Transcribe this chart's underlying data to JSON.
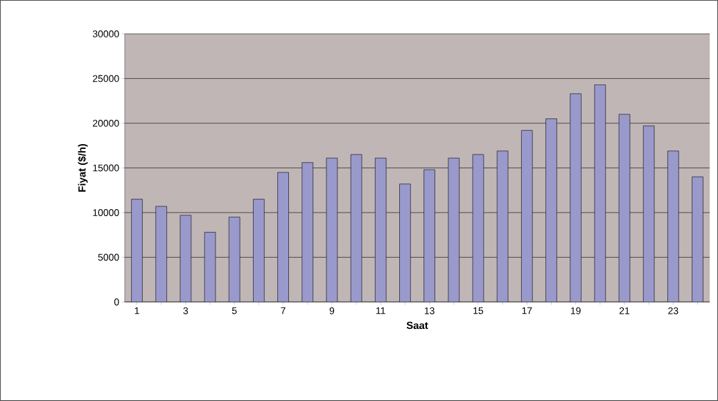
{
  "chart_data": {
    "type": "bar",
    "xlabel": "Saat",
    "ylabel": "Fiyat ($/h)",
    "categories": [
      "1",
      null,
      "3",
      null,
      "5",
      null,
      "7",
      null,
      "9",
      null,
      "11",
      null,
      "13",
      null,
      "15",
      null,
      "17",
      null,
      "19",
      null,
      "21",
      null,
      "23",
      null
    ],
    "values": [
      11500,
      10700,
      9700,
      7800,
      9500,
      11500,
      14500,
      15600,
      16100,
      16500,
      16100,
      13200,
      14800,
      16100,
      16500,
      16900,
      19200,
      20500,
      23300,
      24300,
      21000,
      19700,
      16900,
      14000
    ],
    "color": "#9999cc",
    "ylim": [
      0,
      30000
    ],
    "yticks": [
      0,
      5000,
      10000,
      15000,
      20000,
      25000,
      30000
    ],
    "grid": "y"
  }
}
